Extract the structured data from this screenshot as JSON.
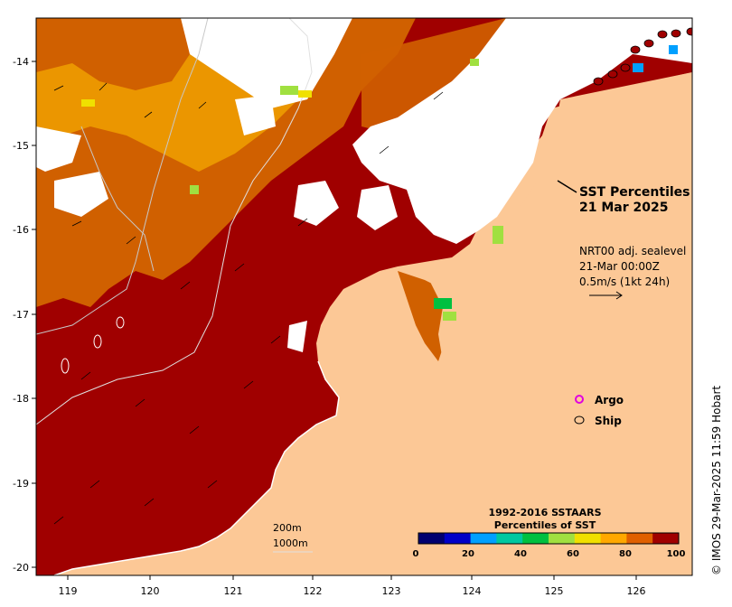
{
  "title": {
    "line1": "SST Percentiles",
    "line2": "21 Mar 2025"
  },
  "current_info": {
    "line1": "NRT00 adj. sealevel",
    "line2": "21-Mar 00:00Z",
    "line3": "0.5m/s (1kt 24h)"
  },
  "legend": {
    "argo_label": "Argo",
    "ship_label": "Ship",
    "argo_color": "#e000e0",
    "ship_color": "#000000"
  },
  "colorbar": {
    "title1": "1992-2016 SSTAARS",
    "title2": "Percentiles of SST",
    "ticks": [
      "0",
      "20",
      "40",
      "60",
      "80",
      "100"
    ],
    "colors": [
      "#000070",
      "#0000c8",
      "#00a0ff",
      "#00c8a0",
      "#00c040",
      "#a0e040",
      "#f0e000",
      "#ffa800",
      "#e06000",
      "#a00000"
    ]
  },
  "contours": {
    "line1": "200m",
    "line2": "1000m"
  },
  "axes": {
    "x_ticks": [
      "119",
      "120",
      "121",
      "122",
      "123",
      "124",
      "125",
      "126"
    ],
    "y_ticks": [
      "-14",
      "-15",
      "-16",
      "-17",
      "-18",
      "-19",
      "-20"
    ]
  },
  "credit": "© IMOS 29-Mar-2025 11:59 Hobart",
  "colors": {
    "land": "#fcc896",
    "dark_red": "#a00000",
    "orange_dark": "#d06000",
    "orange": "#f0a000",
    "white_cloud": "#ffffff"
  }
}
